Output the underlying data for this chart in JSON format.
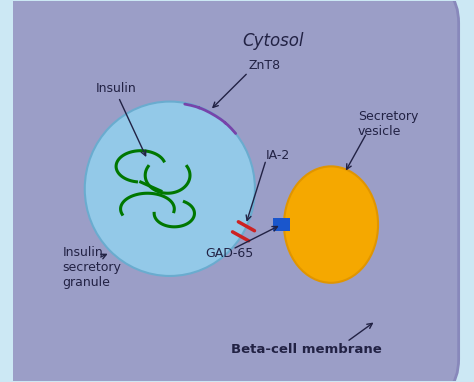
{
  "bg_color": "#cce8f4",
  "cell_color": "#9b9ec7",
  "cell_edge_color": "#8888bb",
  "granule_color": "#93c9e8",
  "granule_edge_color": "#6aaccf",
  "vesicle_color": "#f5a800",
  "vesicle_edge_color": "#e09500",
  "gad65_color": "#1a56cc",
  "znt8_color": "#7744aa",
  "ia2_color": "#cc2222",
  "insulin_color": "#007700",
  "text_color": "#222244",
  "label_cytosol": "Cytosol",
  "label_insulin": "Insulin",
  "label_znt8": "ZnT8",
  "label_ia2": "IA-2",
  "label_secretory": "Secretory\nvesicle",
  "label_granule": "Insulin\nsecretory\ngranule",
  "label_gad65": "GAD-65",
  "label_beta": "Beta-cell membrane",
  "figsize": [
    4.74,
    3.82
  ],
  "dpi": 100
}
